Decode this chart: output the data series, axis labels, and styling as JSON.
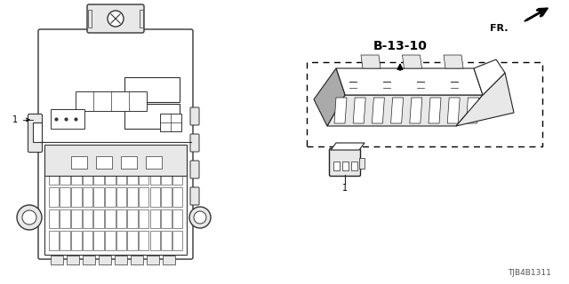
{
  "bg_color": "#ffffff",
  "title_ref": "B-13-10",
  "part_label": "1",
  "fr_label": "FR.",
  "diagram_id": "TJB4B1311",
  "line_color": "#333333",
  "gray_fill": "#c8c8c8",
  "light_gray": "#e8e8e8",
  "mid_gray": "#aaaaaa"
}
